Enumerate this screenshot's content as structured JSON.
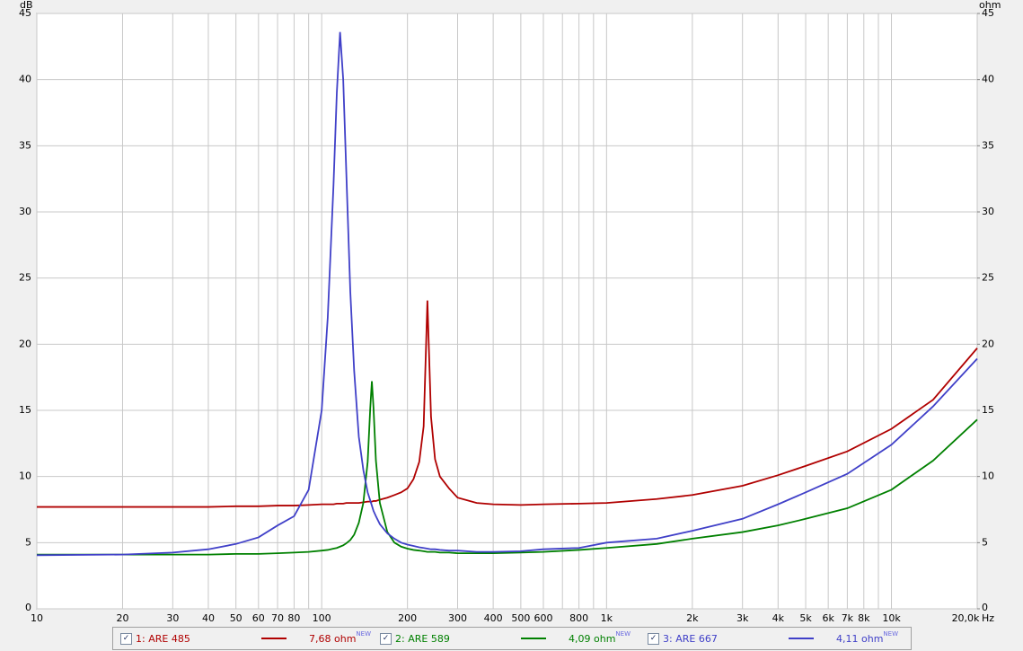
{
  "chart_data": {
    "type": "line",
    "ylabel": "dB",
    "y2label": "ohm",
    "xlabel": "Hz",
    "log_x": true,
    "grid": true,
    "x": [
      10,
      20,
      30,
      40,
      50,
      60,
      70,
      80,
      90,
      100,
      105,
      110,
      113,
      116,
      119,
      122,
      126,
      130,
      135,
      140,
      145,
      148,
      150,
      152,
      155,
      160,
      170,
      180,
      190,
      200,
      210,
      220,
      228,
      235,
      242,
      250,
      260,
      280,
      300,
      350,
      400,
      500,
      600,
      800,
      1000,
      1500,
      2000,
      3000,
      4000,
      5000,
      7000,
      10000,
      14000,
      20000
    ],
    "series": [
      {
        "name": "1: ARE 485",
        "legend_value": "7,68 ohm",
        "badge": "NEW",
        "color": "#b00000",
        "values": [
          7.7,
          7.7,
          7.7,
          7.7,
          7.75,
          7.75,
          7.8,
          7.8,
          7.85,
          7.9,
          7.9,
          7.9,
          7.95,
          7.95,
          7.95,
          8.0,
          8.0,
          8.0,
          8.0,
          8.05,
          8.1,
          8.1,
          8.1,
          8.15,
          8.15,
          8.25,
          8.4,
          8.6,
          8.8,
          9.1,
          9.8,
          11.1,
          13.8,
          23.3,
          14.5,
          11.3,
          10.0,
          9.1,
          8.4,
          8.0,
          7.9,
          7.85,
          7.9,
          7.95,
          8.0,
          8.3,
          8.6,
          9.3,
          10.1,
          10.8,
          11.9,
          13.6,
          15.8,
          19.7
        ]
      },
      {
        "name": "2: ARE 589",
        "legend_value": "4,09 ohm",
        "badge": "NEW",
        "color": "#008000",
        "values": [
          4.1,
          4.1,
          4.1,
          4.1,
          4.15,
          4.15,
          4.2,
          4.25,
          4.3,
          4.4,
          4.45,
          4.55,
          4.6,
          4.7,
          4.8,
          4.95,
          5.2,
          5.6,
          6.5,
          8.0,
          11.1,
          15.1,
          17.2,
          15.2,
          11.2,
          8.0,
          5.8,
          5.0,
          4.7,
          4.55,
          4.45,
          4.4,
          4.35,
          4.3,
          4.3,
          4.3,
          4.25,
          4.25,
          4.2,
          4.2,
          4.2,
          4.25,
          4.3,
          4.45,
          4.6,
          4.9,
          5.3,
          5.8,
          6.3,
          6.8,
          7.6,
          9.0,
          11.2,
          14.3
        ]
      },
      {
        "name": "3: ARE 667",
        "legend_value": "4,11 ohm",
        "badge": "NEW",
        "color": "#4040c8",
        "values": [
          4.05,
          4.1,
          4.25,
          4.5,
          4.9,
          5.4,
          6.3,
          7.0,
          9.0,
          15,
          22,
          32,
          39,
          43.6,
          40,
          33,
          24,
          18,
          13,
          10.5,
          8.8,
          8.2,
          7.8,
          7.4,
          7.0,
          6.4,
          5.7,
          5.3,
          5.0,
          4.85,
          4.75,
          4.65,
          4.6,
          4.55,
          4.5,
          4.5,
          4.45,
          4.4,
          4.4,
          4.3,
          4.3,
          4.35,
          4.5,
          4.6,
          5.0,
          5.3,
          5.9,
          6.8,
          7.9,
          8.8,
          10.2,
          12.4,
          15.3,
          18.9
        ]
      }
    ],
    "xlim": [
      10,
      20000
    ],
    "xticks": [
      10,
      20,
      30,
      40,
      50,
      60,
      70,
      80,
      {
        "value": 90,
        "label": null
      },
      100,
      200,
      300,
      400,
      500,
      600,
      {
        "value": 700,
        "label": null
      },
      800,
      {
        "value": 900,
        "label": null
      },
      {
        "value": 1000,
        "label": "1k"
      },
      {
        "value": 2000,
        "label": "2k"
      },
      {
        "value": 3000,
        "label": "3k"
      },
      {
        "value": 4000,
        "label": "4k"
      },
      {
        "value": 5000,
        "label": "5k"
      },
      {
        "value": 6000,
        "label": "6k"
      },
      {
        "value": 7000,
        "label": "7k"
      },
      {
        "value": 8000,
        "label": "8k"
      },
      {
        "value": 9000,
        "label": null
      },
      {
        "value": 10000,
        "label": "10k"
      },
      {
        "value": 20000,
        "label": "20,0k"
      }
    ],
    "ylim": [
      0,
      45
    ],
    "yticks": [
      0,
      5,
      10,
      15,
      20,
      25,
      30,
      35,
      40,
      45
    ],
    "y2lim": [
      0,
      45
    ],
    "y2ticks": [
      0,
      5,
      10,
      15,
      20,
      25,
      30,
      35,
      40,
      45
    ]
  }
}
